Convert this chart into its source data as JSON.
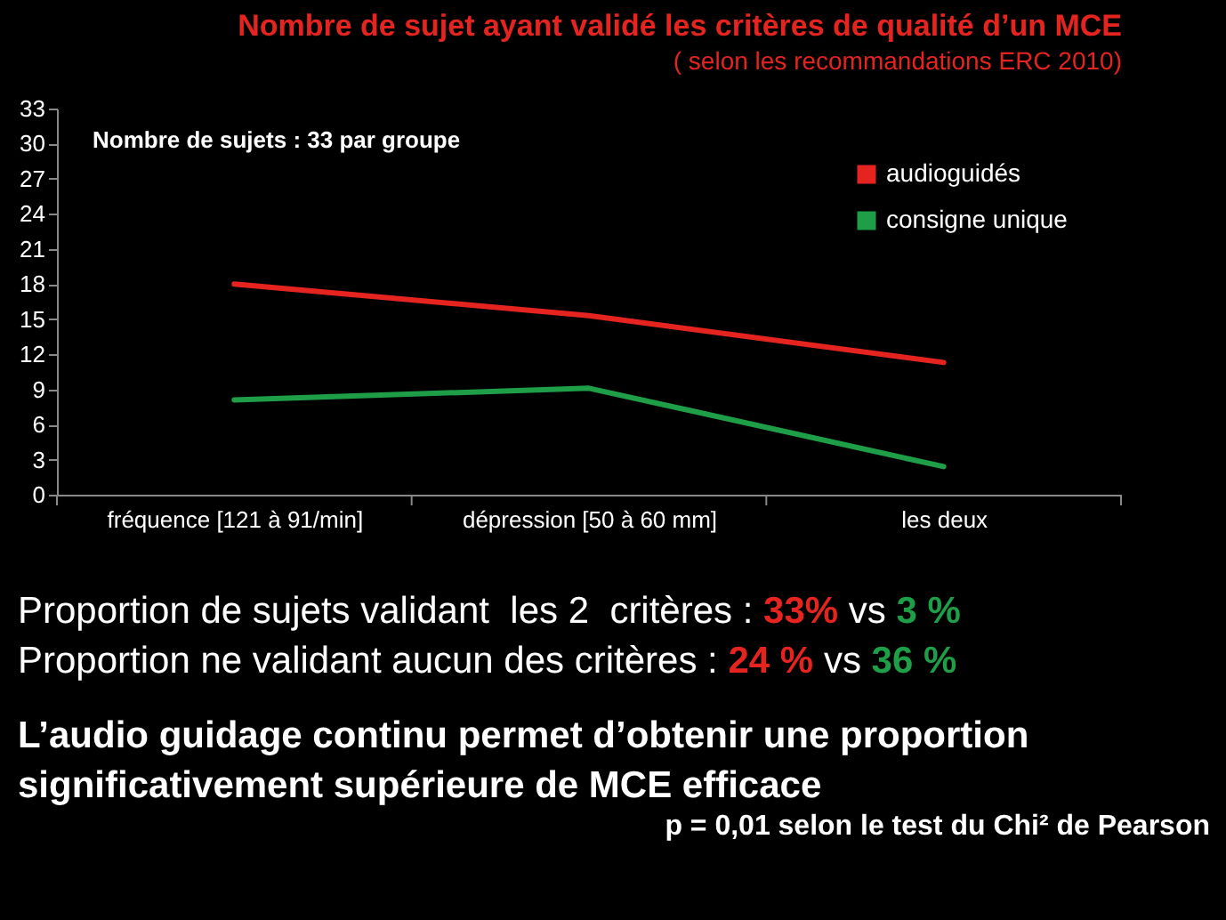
{
  "chart_data": {
    "type": "line",
    "title": "Nombre de  sujet ayant validé les critères de qualité d’un MCE",
    "subtitle": "( selon les recommandations ERC 2010)",
    "categories": [
      "fréquence [121 à 91/min]",
      "dépression [50 à 60 mm]",
      "les deux"
    ],
    "series": [
      {
        "name": "audioguidés",
        "color": "#e52420",
        "values": [
          18,
          15.3,
          11.3
        ]
      },
      {
        "name": "consigne unique",
        "color": "#1f9e48",
        "values": [
          8.1,
          9.1,
          2.4
        ]
      }
    ],
    "ylim": [
      0,
      33
    ],
    "yticks": [
      0,
      3,
      6,
      9,
      12,
      15,
      18,
      21,
      24,
      27,
      30,
      33
    ],
    "grid": false,
    "legend": "top right",
    "marker": "none",
    "line_style": "solid",
    "annotations": [
      "Nombre de sujets : 33 par groupe",
      "Proportion de sujets validant  les 2  critères :",
      "33%",
      "vs",
      "3 %",
      "Proportion ne validant aucun des critères :",
      "24 %",
      "vs",
      "36 %",
      "L’audio guidage continu permet d’obtenir une proportion significativement supérieure de MCE efficace",
      "p = 0,01 selon le test du Chi² de Pearson"
    ]
  }
}
